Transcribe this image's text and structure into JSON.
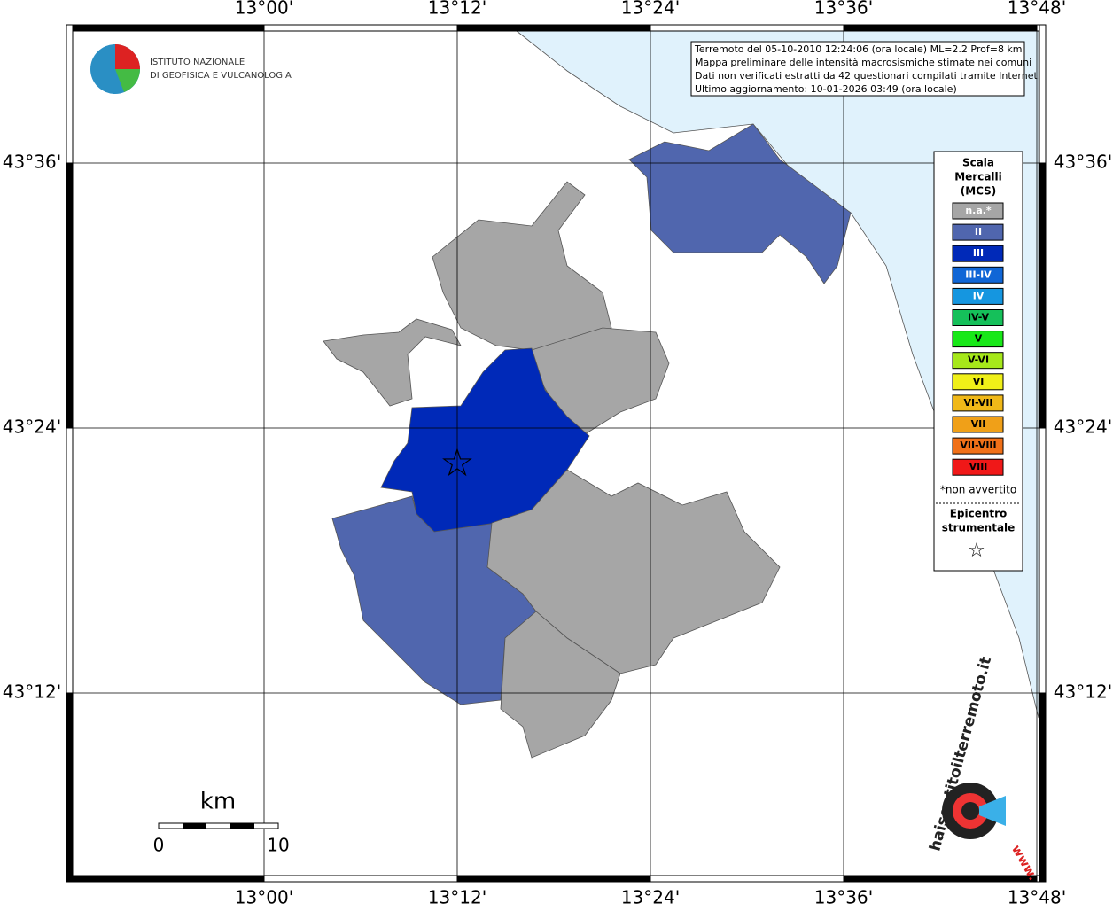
{
  "logo": {
    "line1": "ISTITUTO NAZIONALE",
    "line2": "DI GEOFISICA E VULCANOLOGIA"
  },
  "info": [
    "Terremoto del 05-10-2010 12:24:06 (ora locale) ML=2.2 Prof=8 km",
    "Mappa preliminare delle intensità macrosismiche stimate nei comuni",
    "Dati non verificati estratti da 42 questionari compilati tramite Internet.",
    "Ultimo aggiornamento: 10-01-2026 03:49 (ora locale)"
  ],
  "lon_labels": [
    "13°00'",
    "13°12'",
    "13°24'",
    "13°36'",
    "13°48'"
  ],
  "lat_labels": [
    "43°36'",
    "43°24'",
    "43°12'"
  ],
  "legend": {
    "title": [
      "Scala",
      "Mercalli",
      "(MCS)"
    ],
    "items": [
      {
        "label": "n.a.*",
        "color": "#a6a6a6"
      },
      {
        "label": "II",
        "color": "#5066ae"
      },
      {
        "label": "III",
        "color": "#0029b8"
      },
      {
        "label": "III-IV",
        "color": "#1066d6"
      },
      {
        "label": "IV",
        "color": "#1596e0"
      },
      {
        "label": "IV-V",
        "color": "#15c05a"
      },
      {
        "label": "V",
        "color": "#18e818"
      },
      {
        "label": "V-VI",
        "color": "#a6e81a"
      },
      {
        "label": "VI",
        "color": "#f0f018"
      },
      {
        "label": "VI-VII",
        "color": "#f0b818"
      },
      {
        "label": "VII",
        "color": "#f0a018"
      },
      {
        "label": "VII-VIII",
        "color": "#f07018"
      },
      {
        "label": "VIII",
        "color": "#f01818"
      }
    ],
    "note": "*non avvertito",
    "epicenter": [
      "Epicentro",
      "strumentale"
    ],
    "star": "☆"
  },
  "scale": {
    "unit": "km",
    "start": "0",
    "end": "10"
  },
  "site": {
    "name": "haisentitoilterremoto.it",
    "www": "www."
  }
}
